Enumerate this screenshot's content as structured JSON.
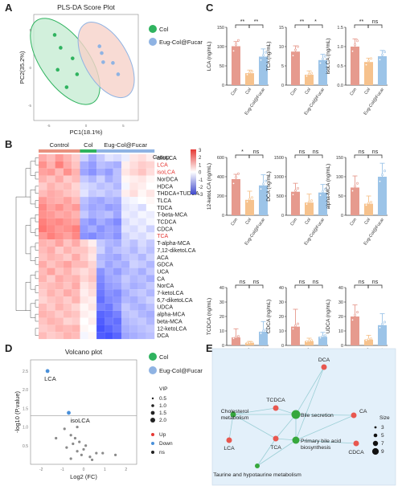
{
  "panels": {
    "a": "A",
    "b": "B",
    "c": "C",
    "d": "D",
    "e": "E"
  },
  "colors": {
    "col": "#e8917f",
    "col_fill": "#f6d2c9",
    "eug": "#8fb3e3",
    "eug_fill": "#c9dbf3",
    "ctrl": "#2fb35f",
    "ctrl_fill": "#c7ecd3",
    "bar_con": "#e69a8e",
    "bar_col": "#f6c28d",
    "bar_eug": "#9cc4e8",
    "graph_bg": "#e3f0fa",
    "node_red": "#e8574f",
    "node_green": "#36a83c"
  },
  "chart_data": [
    {
      "id": "A",
      "type": "scatter",
      "title": "PLS-DA Score Plot",
      "xlabel": "PC1(18.1%)",
      "ylabel": "PC2(35.2%)",
      "xticks": [
        "-5",
        "0",
        "5"
      ],
      "yticks": [
        "-5",
        "0",
        "5"
      ],
      "xlim": [
        -7,
        7
      ],
      "ylim": [
        -7,
        7
      ],
      "legend": [
        "Col",
        "Eug-Col@Fucar"
      ],
      "legend_position": "right",
      "series": [
        {
          "name": "Col",
          "points": [
            [
              -4.2,
              4.3
            ],
            [
              -3.4,
              2.6
            ],
            [
              -1.8,
              1.2
            ],
            [
              -3.8,
              -0.3
            ],
            [
              -1.2,
              -0.9
            ],
            [
              -2.6,
              -2.6
            ]
          ]
        },
        {
          "name": "Eug-Col@Fucar",
          "points": [
            [
              1.8,
              2.8
            ],
            [
              2.1,
              1.9
            ],
            [
              2.3,
              0.7
            ],
            [
              3.6,
              0.6
            ],
            [
              4.3,
              -0.9
            ]
          ]
        }
      ]
    },
    {
      "id": "B",
      "type": "heatmap",
      "groups": [
        "Control",
        "Col",
        "Eug-Col@Fucar"
      ],
      "legend_title": "Group",
      "scale_ticks": [
        "3",
        "2",
        "1",
        "0",
        "-1",
        "-2",
        "-3"
      ],
      "rows": [
        "alloLCA",
        "LCA",
        "isoLCA",
        "NorDCA",
        "HDCA",
        "THDCA+TUDCA",
        "TLCA",
        "TDCA",
        "T-beta-MCA",
        "TCDCA",
        "CDCA",
        "TCA",
        "T-alpha-MCA",
        "7,12-diketoLCA",
        "ACA",
        "GDCA",
        "UCA",
        "CA",
        "NorCA",
        "7-ketoLCA",
        "6,7-diketoLCA",
        "UDCA",
        "alpha-MCA",
        "beta-MCA",
        "12-ketoLCA",
        "DCA"
      ],
      "highlighted_rows": [
        "LCA",
        "isoLCA",
        "TCA"
      ],
      "values": [
        [
          1.0,
          0.8,
          1.2,
          0.9,
          0.6,
          -0.5,
          -0.9,
          -0.6,
          -0.3,
          -0.4,
          -0.2,
          0.3,
          0.4,
          0.2
        ],
        [
          1.3,
          0.9,
          1.5,
          1.0,
          0.7,
          -0.9,
          -1.1,
          -0.7,
          -0.8,
          -0.9,
          0.2,
          0.4,
          0.6,
          0.5
        ],
        [
          1.1,
          1.2,
          0.8,
          1.3,
          0.9,
          -1.0,
          -1.2,
          -0.9,
          -1.1,
          -0.7,
          0.3,
          0.5,
          0.7,
          0.4
        ],
        [
          0.9,
          0.7,
          1.0,
          0.6,
          0.8,
          -0.6,
          -0.8,
          -0.5,
          -0.9,
          -0.7,
          0.1,
          0.2,
          0.3,
          0.1
        ],
        [
          0.6,
          0.9,
          0.7,
          0.8,
          0.5,
          -0.4,
          -0.5,
          -0.7,
          -0.6,
          -0.8,
          -0.1,
          0.3,
          0.2,
          0.0
        ],
        [
          0.8,
          1.0,
          0.9,
          0.7,
          0.6,
          -0.3,
          -0.6,
          -0.5,
          -0.7,
          -0.6,
          0.2,
          0.4,
          0.1,
          0.3
        ],
        [
          1.2,
          1.0,
          0.9,
          1.1,
          0.8,
          -0.7,
          -0.9,
          -1.0,
          -0.8,
          -0.9,
          -0.2,
          -0.1,
          0.0,
          0.1
        ],
        [
          1.4,
          1.1,
          1.3,
          1.0,
          1.2,
          -0.8,
          -1.0,
          -0.9,
          -1.1,
          -1.0,
          -0.3,
          -0.2,
          -0.4,
          0.0
        ],
        [
          1.3,
          1.2,
          1.0,
          1.1,
          0.9,
          -0.6,
          -0.9,
          -0.8,
          -0.7,
          -1.0,
          -0.2,
          -0.3,
          -0.1,
          -0.2
        ],
        [
          1.5,
          1.3,
          1.4,
          1.2,
          1.1,
          -1.0,
          -1.2,
          -0.9,
          -1.1,
          -1.3,
          -0.4,
          -0.2,
          -0.3,
          -0.1
        ],
        [
          1.6,
          1.4,
          1.2,
          1.3,
          1.5,
          -1.1,
          -0.9,
          -1.2,
          -1.0,
          -1.1,
          -0.3,
          -0.4,
          -0.2,
          -0.5
        ],
        [
          1.2,
          1.5,
          1.3,
          1.1,
          1.4,
          -1.2,
          -1.3,
          -1.1,
          -1.0,
          -1.2,
          -0.5,
          -0.3,
          -0.4,
          -0.2
        ],
        [
          0.9,
          0.8,
          1.1,
          0.7,
          1.0,
          0.5,
          0.2,
          -0.6,
          -0.8,
          -0.9,
          -0.5,
          -0.7,
          -0.4,
          -0.6
        ],
        [
          0.8,
          1.0,
          0.6,
          0.9,
          0.7,
          0.7,
          0.4,
          -0.5,
          -0.9,
          -0.7,
          -0.6,
          -0.8,
          -0.5,
          -0.7
        ],
        [
          0.7,
          0.9,
          0.8,
          0.6,
          1.0,
          0.6,
          0.3,
          -0.8,
          -0.9,
          -1.0,
          -0.7,
          -0.6,
          -0.8,
          -0.5
        ],
        [
          1.0,
          0.7,
          0.9,
          1.1,
          0.8,
          0.8,
          0.5,
          -0.7,
          -1.0,
          -0.8,
          -0.9,
          -0.5,
          -0.6,
          -0.8
        ],
        [
          0.8,
          1.1,
          0.7,
          0.9,
          0.6,
          0.4,
          0.6,
          -1.2,
          -0.9,
          -1.1,
          -0.8,
          -0.7,
          -0.9,
          -0.6
        ],
        [
          0.9,
          0.6,
          1.0,
          0.8,
          0.9,
          0.5,
          0.7,
          -1.3,
          -1.0,
          -0.9,
          -0.6,
          -0.8,
          -0.7,
          -0.9
        ],
        [
          0.7,
          0.8,
          0.9,
          0.7,
          1.0,
          0.3,
          0.5,
          -1.4,
          -1.1,
          -1.0,
          -0.7,
          -0.9,
          -0.8,
          -0.6
        ],
        [
          0.6,
          0.9,
          0.7,
          1.0,
          0.8,
          0.2,
          0.4,
          -1.5,
          -1.2,
          -1.3,
          -0.9,
          -0.7,
          -0.6,
          -0.8
        ],
        [
          0.5,
          0.7,
          0.8,
          0.6,
          0.9,
          0.3,
          0.2,
          -1.6,
          -1.3,
          -1.2,
          -0.8,
          -0.9,
          -0.7,
          -0.5
        ],
        [
          0.8,
          0.6,
          0.9,
          0.7,
          0.5,
          0.1,
          0.3,
          -1.4,
          -1.5,
          -1.1,
          -0.6,
          -0.8,
          -0.9,
          -0.7
        ],
        [
          0.9,
          0.8,
          0.6,
          0.8,
          0.7,
          0.2,
          0.1,
          -1.7,
          -1.6,
          -1.4,
          -0.7,
          -0.6,
          -0.8,
          -0.9
        ],
        [
          0.7,
          0.9,
          0.8,
          0.5,
          0.6,
          0.0,
          0.2,
          -1.8,
          -1.5,
          -1.6,
          -0.8,
          -0.7,
          -0.6,
          -0.8
        ],
        [
          0.6,
          0.7,
          0.9,
          0.8,
          0.9,
          0.1,
          0.0,
          -1.9,
          -1.7,
          -1.5,
          -0.9,
          -0.8,
          -0.7,
          -0.6
        ],
        [
          0.8,
          0.6,
          0.7,
          0.9,
          0.8,
          -0.1,
          0.1,
          -1.8,
          -1.9,
          -1.7,
          -1.0,
          -0.9,
          -0.8,
          -0.7
        ]
      ]
    },
    {
      "id": "C",
      "type": "bar",
      "categories": [
        "Con",
        "Col",
        "Eug-Col@Fucar"
      ],
      "subplots": [
        {
          "ylabel": "LCA (ng/mL)",
          "ylim": [
            0,
            150
          ],
          "yticks": [
            "0",
            "50",
            "100",
            "150"
          ],
          "values": [
            101,
            31,
            74
          ],
          "err": [
            12,
            8,
            20
          ],
          "sig": [
            "**",
            "**"
          ]
        },
        {
          "ylabel": "TCA (ng/mL)",
          "ylim": [
            0,
            15
          ],
          "yticks": [
            "0",
            "5",
            "10",
            "15"
          ],
          "values": [
            8.7,
            2.7,
            6.5
          ],
          "err": [
            1.5,
            1.0,
            1.5
          ],
          "sig": [
            "**",
            "*"
          ]
        },
        {
          "ylabel": "isoLCA (ng/mL)",
          "ylim": [
            0,
            1.5
          ],
          "yticks": [
            "0.0",
            "0.5",
            "1.0",
            "1.5"
          ],
          "values": [
            1.0,
            0.6,
            0.75
          ],
          "err": [
            0.2,
            0.1,
            0.15
          ],
          "sig": [
            "**",
            "ns"
          ]
        },
        {
          "ylabel": "12-ketoLCA (ng/mL)",
          "ylim": [
            0,
            600
          ],
          "yticks": [
            "0",
            "200",
            "400",
            "600"
          ],
          "values": [
            375,
            160,
            310
          ],
          "err": [
            50,
            90,
            110
          ],
          "sig": [
            "*",
            "ns"
          ]
        },
        {
          "ylabel": "DCA (ng/mL)",
          "ylim": [
            0,
            1500
          ],
          "yticks": [
            "0",
            "500",
            "1000",
            "1500"
          ],
          "values": [
            610,
            330,
            590
          ],
          "err": [
            220,
            220,
            210
          ],
          "sig": [
            "ns",
            "ns"
          ]
        },
        {
          "ylabel": "alpha-MCA (ng/mL)",
          "ylim": [
            0,
            150
          ],
          "yticks": [
            "0",
            "50",
            "100",
            "150"
          ],
          "values": [
            72,
            30,
            100
          ],
          "err": [
            30,
            20,
            35
          ],
          "sig": [
            "ns",
            "ns"
          ]
        },
        {
          "ylabel": "TCDCA (ng/mL)",
          "ylim": [
            0,
            40
          ],
          "yticks": [
            "0",
            "10",
            "20",
            "30",
            "40"
          ],
          "values": [
            5.5,
            1.8,
            9.5
          ],
          "err": [
            6,
            1,
            7
          ],
          "sig": [
            "ns",
            "ns"
          ]
        },
        {
          "ylabel": "CDCA (ng/mL)",
          "ylim": [
            0,
            40
          ],
          "yticks": [
            "0",
            "10",
            "20",
            "30",
            "40"
          ],
          "values": [
            13,
            3,
            6
          ],
          "err": [
            12,
            2,
            3
          ],
          "sig": [
            "ns",
            "ns"
          ]
        },
        {
          "ylabel": "UDCA (ng/mL)",
          "ylim": [
            0,
            40
          ],
          "yticks": [
            "0",
            "10",
            "20",
            "30",
            "40"
          ],
          "values": [
            20,
            4,
            14
          ],
          "err": [
            8,
            3,
            8
          ],
          "sig": [
            "ns",
            "ns"
          ]
        }
      ]
    },
    {
      "id": "D",
      "type": "scatter",
      "title": "Volcano plot",
      "xlabel": "Log2 (FC)",
      "ylabel": "-log10 (P.value)",
      "xticks": [
        "-2",
        "-1",
        "0",
        "1",
        "2"
      ],
      "yticks": [
        "0.5",
        "1.0",
        "1.5",
        "2.0",
        "2.5"
      ],
      "xlim": [
        -2.5,
        2.5
      ],
      "ylim": [
        0,
        2.8
      ],
      "threshold": 1.3,
      "legend": [
        "Col",
        "Eug-Col@Fucar"
      ],
      "size_legend_title": "VIP",
      "size_values": [
        "0.5",
        "1.0",
        "1.5",
        "2.0"
      ],
      "status_legend": [
        "Up",
        "Down",
        "ns"
      ],
      "labels": [
        "LCA",
        "isoLCA"
      ],
      "points": [
        {
          "label": "LCA",
          "x": -1.7,
          "y": 2.5,
          "status": "Down"
        },
        {
          "label": "isoLCA",
          "x": -0.7,
          "y": 1.38,
          "status": "Down"
        },
        {
          "x": -0.9,
          "y": 0.95
        },
        {
          "x": -0.3,
          "y": 1.0
        },
        {
          "x": -0.6,
          "y": 0.78
        },
        {
          "x": -0.4,
          "y": 0.7
        },
        {
          "x": -1.3,
          "y": 0.7
        },
        {
          "x": -0.2,
          "y": 0.6
        },
        {
          "x": -0.5,
          "y": 0.55
        },
        {
          "x": 0.1,
          "y": 0.5
        },
        {
          "x": -0.8,
          "y": 0.45
        },
        {
          "x": 0.0,
          "y": 0.4
        },
        {
          "x": -0.3,
          "y": 0.35
        },
        {
          "x": 0.6,
          "y": 0.3
        },
        {
          "x": 0.9,
          "y": 0.3
        },
        {
          "x": -0.1,
          "y": 0.25
        },
        {
          "x": 0.3,
          "y": 0.2
        },
        {
          "x": -0.6,
          "y": 0.15
        },
        {
          "x": 0.4,
          "y": 0.12
        },
        {
          "x": 1.5,
          "y": 0.25
        }
      ]
    },
    {
      "id": "E",
      "type": "network",
      "size_legend_title": "Size",
      "size_values": [
        "3",
        "5",
        "7",
        "9"
      ],
      "nodes": [
        {
          "label": "DCA",
          "kind": "compound"
        },
        {
          "label": "CA",
          "kind": "compound"
        },
        {
          "label": "TCDCA",
          "kind": "compound"
        },
        {
          "label": "LCA",
          "kind": "compound"
        },
        {
          "label": "TCA",
          "kind": "compound"
        },
        {
          "label": "CDCA",
          "kind": "compound"
        },
        {
          "label": "Bile secretion",
          "kind": "pathway"
        },
        {
          "label": "Cholesterol\nmetabolism",
          "kind": "pathway"
        },
        {
          "label": "Primary bile acid\nbiosynthesis",
          "kind": "pathway"
        },
        {
          "label": "Taurine and hypotaurine metabolism",
          "kind": "pathway"
        }
      ]
    }
  ]
}
